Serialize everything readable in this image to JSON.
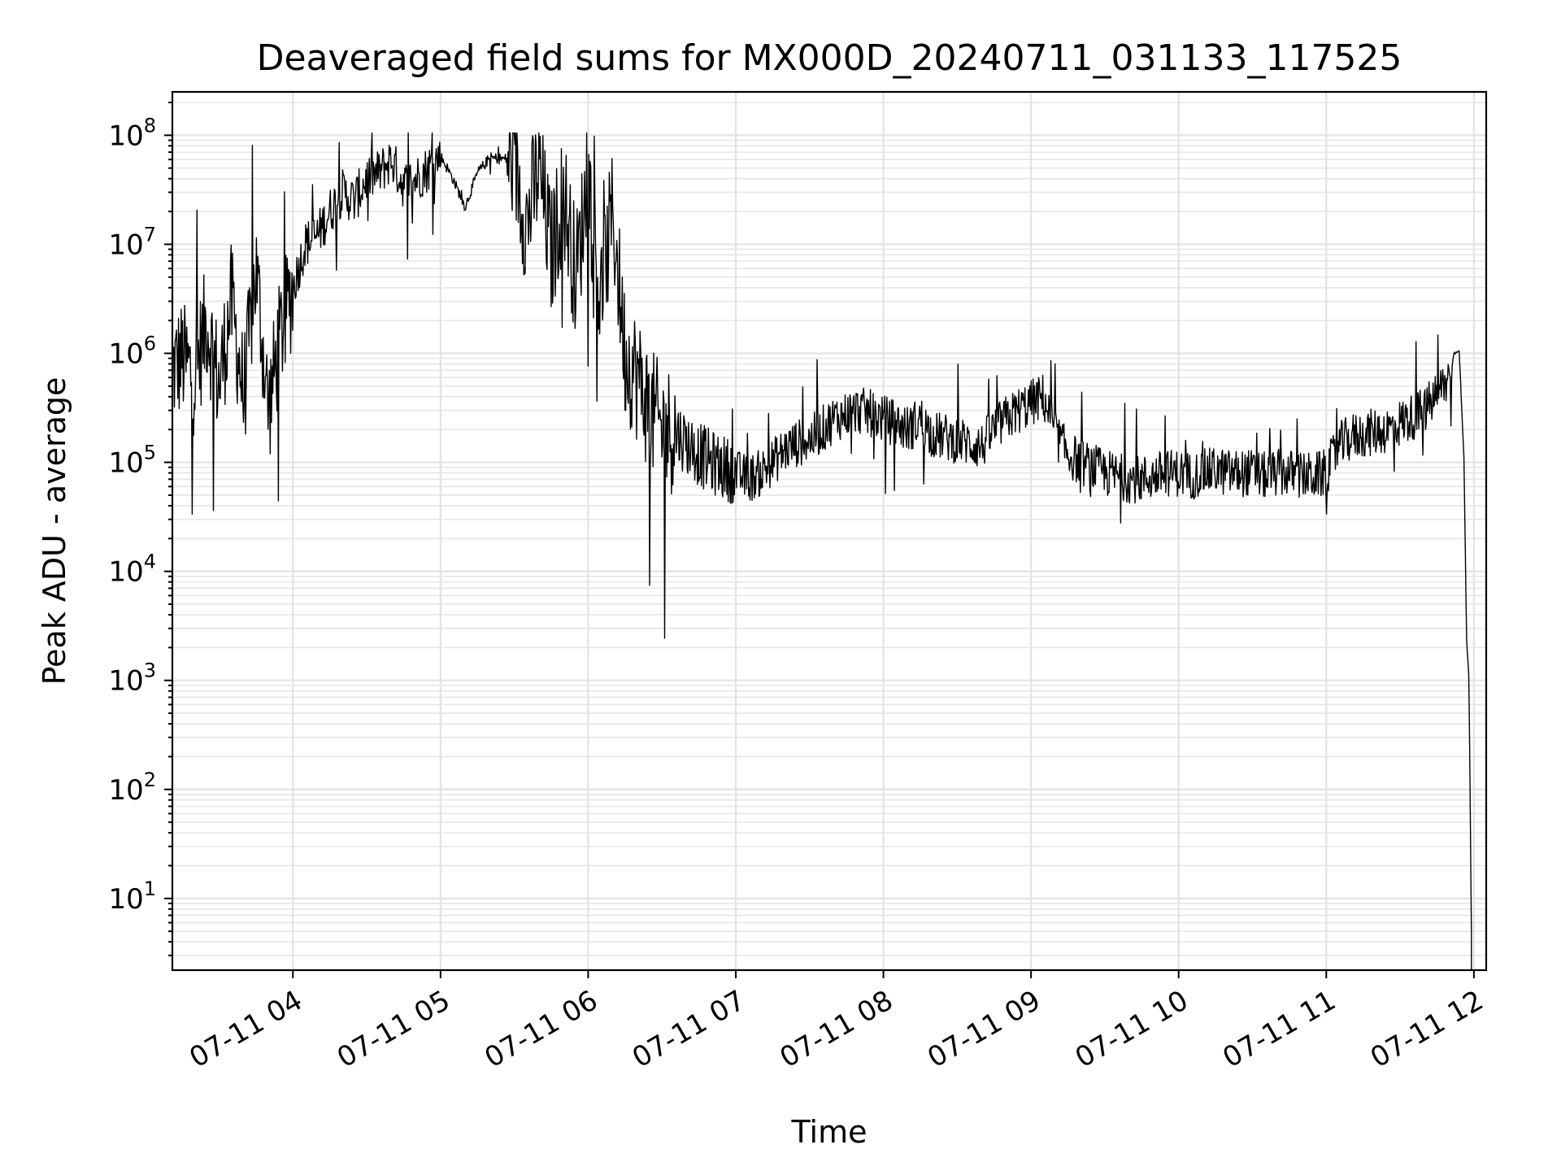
{
  "chart_data": {
    "type": "line",
    "title": "Deaveraged field sums for MX000D_20240711_031133_117525",
    "xlabel": "Time",
    "ylabel": "Peak ADU - average",
    "yscale": "log",
    "ylim": [
      2.2,
      250000000
    ],
    "xlim": [
      "2024-07-11 03:11",
      "2024-07-11 12:05"
    ],
    "grid": true,
    "line_color": "#000000",
    "x_ticks": [
      {
        "value": "2024-07-11 04:00",
        "label": "07-11 04"
      },
      {
        "value": "2024-07-11 05:00",
        "label": "07-11 05"
      },
      {
        "value": "2024-07-11 06:00",
        "label": "07-11 06"
      },
      {
        "value": "2024-07-11 07:00",
        "label": "07-11 07"
      },
      {
        "value": "2024-07-11 08:00",
        "label": "07-11 08"
      },
      {
        "value": "2024-07-11 09:00",
        "label": "07-11 09"
      },
      {
        "value": "2024-07-11 10:00",
        "label": "07-11 10"
      },
      {
        "value": "2024-07-11 11:00",
        "label": "07-11 11"
      },
      {
        "value": "2024-07-11 12:00",
        "label": "07-11 12"
      }
    ],
    "y_ticks": [
      {
        "value": 10,
        "base": "10",
        "exp": "1"
      },
      {
        "value": 100,
        "base": "10",
        "exp": "2"
      },
      {
        "value": 1000,
        "base": "10",
        "exp": "3"
      },
      {
        "value": 10000,
        "base": "10",
        "exp": "4"
      },
      {
        "value": 100000,
        "base": "10",
        "exp": "5"
      },
      {
        "value": 1000000,
        "base": "10",
        "exp": "6"
      },
      {
        "value": 10000000,
        "base": "10",
        "exp": "7"
      },
      {
        "value": 100000000,
        "base": "10",
        "exp": "8"
      }
    ],
    "series": [
      {
        "x": [
          "2024-07-11 03:11",
          "2024-07-11 03:15",
          "2024-07-11 03:20",
          "2024-07-11 03:25",
          "2024-07-11 03:30",
          "2024-07-11 03:35",
          "2024-07-11 03:40",
          "2024-07-11 03:45",
          "2024-07-11 03:50",
          "2024-07-11 03:55",
          "2024-07-11 04:00",
          "2024-07-11 04:05",
          "2024-07-11 04:10",
          "2024-07-11 04:15",
          "2024-07-11 04:20",
          "2024-07-11 04:25",
          "2024-07-11 04:30",
          "2024-07-11 04:35",
          "2024-07-11 04:40",
          "2024-07-11 04:45",
          "2024-07-11 04:50",
          "2024-07-11 04:55",
          "2024-07-11 05:00",
          "2024-07-11 05:05",
          "2024-07-11 05:10",
          "2024-07-11 05:15",
          "2024-07-11 05:20",
          "2024-07-11 05:25",
          "2024-07-11 05:30",
          "2024-07-11 05:35",
          "2024-07-11 05:40",
          "2024-07-11 05:45",
          "2024-07-11 05:50",
          "2024-07-11 05:55",
          "2024-07-11 06:00",
          "2024-07-11 06:05",
          "2024-07-11 06:10",
          "2024-07-11 06:15",
          "2024-07-11 06:20",
          "2024-07-11 06:25",
          "2024-07-11 06:30",
          "2024-07-11 06:35",
          "2024-07-11 06:40",
          "2024-07-11 06:45",
          "2024-07-11 06:50",
          "2024-07-11 06:55",
          "2024-07-11 07:00",
          "2024-07-11 07:05",
          "2024-07-11 07:10",
          "2024-07-11 07:15",
          "2024-07-11 07:20",
          "2024-07-11 07:25",
          "2024-07-11 07:30",
          "2024-07-11 07:35",
          "2024-07-11 07:40",
          "2024-07-11 07:45",
          "2024-07-11 07:50",
          "2024-07-11 07:55",
          "2024-07-11 08:00",
          "2024-07-11 08:05",
          "2024-07-11 08:10",
          "2024-07-11 08:15",
          "2024-07-11 08:20",
          "2024-07-11 08:25",
          "2024-07-11 08:30",
          "2024-07-11 08:35",
          "2024-07-11 08:40",
          "2024-07-11 08:45",
          "2024-07-11 08:50",
          "2024-07-11 08:55",
          "2024-07-11 09:00",
          "2024-07-11 09:05",
          "2024-07-11 09:10",
          "2024-07-11 09:15",
          "2024-07-11 09:20",
          "2024-07-11 09:25",
          "2024-07-11 09:30",
          "2024-07-11 09:35",
          "2024-07-11 09:40",
          "2024-07-11 09:45",
          "2024-07-11 09:50",
          "2024-07-11 09:55",
          "2024-07-11 10:00",
          "2024-07-11 10:05",
          "2024-07-11 10:10",
          "2024-07-11 10:15",
          "2024-07-11 10:20",
          "2024-07-11 10:25",
          "2024-07-11 10:30",
          "2024-07-11 10:35",
          "2024-07-11 10:40",
          "2024-07-11 10:45",
          "2024-07-11 10:50",
          "2024-07-11 10:55",
          "2024-07-11 11:00",
          "2024-07-11 11:05",
          "2024-07-11 11:10",
          "2024-07-11 11:15",
          "2024-07-11 11:20",
          "2024-07-11 11:25",
          "2024-07-11 11:30",
          "2024-07-11 11:35",
          "2024-07-11 11:40",
          "2024-07-11 11:45",
          "2024-07-11 11:50",
          "2024-07-11 11:52",
          "2024-07-11 11:54",
          "2024-07-11 11:56",
          "2024-07-11 11:57",
          "2024-07-11 11:58",
          "2024-07-11 11:59"
        ],
        "y": [
          700000,
          900000,
          600000,
          2000000,
          500000,
          3000000,
          400000,
          6000000,
          300000,
          1500000,
          4000000,
          10000000,
          12000000,
          20000000,
          30000000,
          25000000,
          40000000,
          45000000,
          60000000,
          35000000,
          40000000,
          50000000,
          65000000,
          40000000,
          22000000,
          45000000,
          62000000,
          61000000,
          60000000,
          15000000,
          50000000,
          8000000,
          30000000,
          5000000,
          40000000,
          3000000,
          20000000,
          1000000,
          600000,
          300000,
          200000,
          200000,
          150000,
          120000,
          100000,
          90000,
          80000,
          70000,
          80000,
          100000,
          130000,
          150000,
          160000,
          200000,
          250000,
          280000,
          300000,
          280000,
          250000,
          230000,
          200000,
          250000,
          180000,
          170000,
          160000,
          150000,
          140000,
          200000,
          250000,
          300000,
          350000,
          400000,
          180000,
          120000,
          100000,
          90000,
          80000,
          75000,
          70000,
          70000,
          75000,
          80000,
          80000,
          75000,
          80000,
          85000,
          80000,
          80000,
          80000,
          75000,
          80000,
          80000,
          75000,
          75000,
          80000,
          140000,
          170000,
          180000,
          190000,
          200000,
          230000,
          260000,
          300000,
          420000,
          600000,
          1000000,
          1100000,
          100000,
          2500,
          1000,
          5
        ]
      }
    ]
  }
}
